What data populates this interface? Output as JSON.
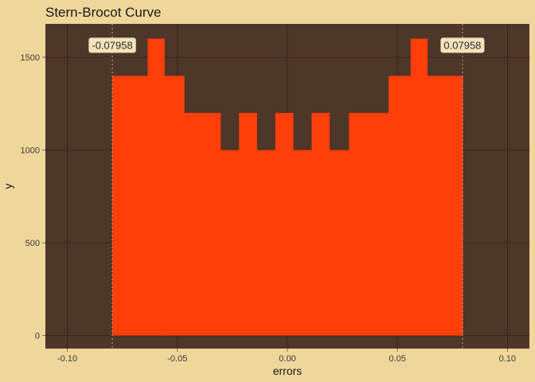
{
  "chart_data": {
    "type": "bar",
    "title": "Stern-Brocot Curve",
    "xlabel": "errors",
    "ylabel": "y",
    "xlim": [
      -0.11,
      0.11
    ],
    "ylim": [
      -70,
      1680
    ],
    "x_ticks": [
      {
        "value": -0.1,
        "label": "-0.10"
      },
      {
        "value": -0.05,
        "label": "-0.05"
      },
      {
        "value": 0.0,
        "label": "0.00"
      },
      {
        "value": 0.05,
        "label": "0.05"
      },
      {
        "value": 0.1,
        "label": "0.10"
      }
    ],
    "y_ticks": [
      {
        "value": 0,
        "label": "0"
      },
      {
        "value": 500,
        "label": "500"
      },
      {
        "value": 1000,
        "label": "1000"
      },
      {
        "value": 1500,
        "label": "1500"
      }
    ],
    "grid": true,
    "bins": [
      {
        "x0": -0.07958,
        "x1": -0.0635,
        "y": 1400
      },
      {
        "x0": -0.0635,
        "x1": -0.056,
        "y": 1600
      },
      {
        "x0": -0.056,
        "x1": -0.047,
        "y": 1400
      },
      {
        "x0": -0.047,
        "x1": -0.0305,
        "y": 1200
      },
      {
        "x0": -0.0305,
        "x1": -0.022,
        "y": 1000
      },
      {
        "x0": -0.022,
        "x1": -0.014,
        "y": 1200
      },
      {
        "x0": -0.014,
        "x1": -0.0055,
        "y": 1000
      },
      {
        "x0": -0.0055,
        "x1": 0.0025,
        "y": 1200
      },
      {
        "x0": 0.0025,
        "x1": 0.011,
        "y": 1000
      },
      {
        "x0": 0.011,
        "x1": 0.019,
        "y": 1200
      },
      {
        "x0": 0.019,
        "x1": 0.028,
        "y": 1000
      },
      {
        "x0": 0.028,
        "x1": 0.046,
        "y": 1200
      },
      {
        "x0": 0.046,
        "x1": 0.056,
        "y": 1400
      },
      {
        "x0": 0.056,
        "x1": 0.0635,
        "y": 1600
      },
      {
        "x0": 0.0635,
        "x1": 0.07958,
        "y": 1400
      }
    ],
    "annotations": [
      {
        "x": -0.07958,
        "y": 1560,
        "label": "-0.07958"
      },
      {
        "x": 0.07958,
        "y": 1560,
        "label": "0.07958"
      }
    ],
    "colors": {
      "background": "#efd79b",
      "panel": "#4e3628",
      "grid": "#2f2018",
      "fill": "#ff3e0a",
      "vline": "#c9a89a",
      "label_fill": "#f2e3bd"
    }
  }
}
